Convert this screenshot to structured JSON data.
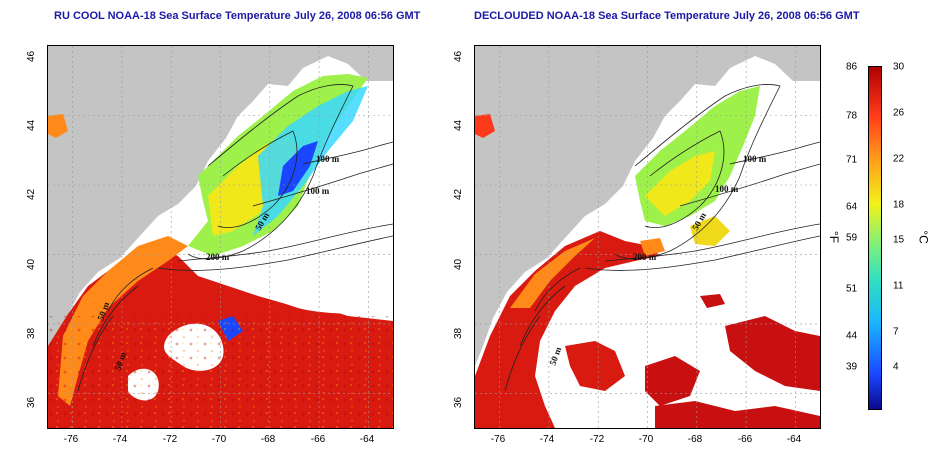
{
  "maps": [
    {
      "title": "RU COOL NOAA-18 Sea Surface Temperature July 26, 2008 06:56 GMT",
      "contour_labels": [
        "100 m",
        "100 m",
        "50 m",
        "200 m",
        "50 m",
        "50 m"
      ]
    },
    {
      "title": "DECLOUDED NOAA-18 Sea Surface Temperature July 26, 2008 06:56 GMT",
      "contour_labels": [
        "100 m",
        "100 m",
        "50 m",
        "200 m",
        "50 m"
      ]
    }
  ],
  "axes": {
    "x_ticks": [
      "-76",
      "-74",
      "-72",
      "-70",
      "-68",
      "-66",
      "-64"
    ],
    "y_ticks": [
      "46",
      "44",
      "42",
      "40",
      "38",
      "36"
    ],
    "xlim": [
      -77,
      -63
    ],
    "ylim": [
      35,
      46
    ]
  },
  "colorbar": {
    "fahrenheit_labels": [
      "86",
      "78",
      "71",
      "64",
      "59",
      "51",
      "44",
      "39"
    ],
    "celsius_labels": [
      "30",
      "26",
      "22",
      "18",
      "15",
      "11",
      "7",
      "4"
    ],
    "fahrenheit_unit": "°F",
    "celsius_unit": "°C",
    "colors": [
      "#0a0a8a",
      "#1a46ff",
      "#1ab4ff",
      "#33e0c0",
      "#7df07a",
      "#f2f21a",
      "#ffa51a",
      "#ff3a1a",
      "#b00000"
    ]
  }
}
